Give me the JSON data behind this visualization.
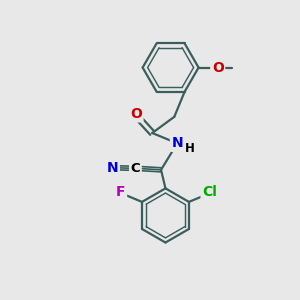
{
  "background_color": "#e8e8e8",
  "bond_color": "#3a5f5a",
  "atom_colors": {
    "O": "#cc0000",
    "N": "#0000dd",
    "F": "#bb00bb",
    "Cl": "#00aa00",
    "C": "#000000",
    "H": "#000000"
  },
  "bond_width": 1.6,
  "font_size_atom": 10,
  "font_size_small": 8.5
}
